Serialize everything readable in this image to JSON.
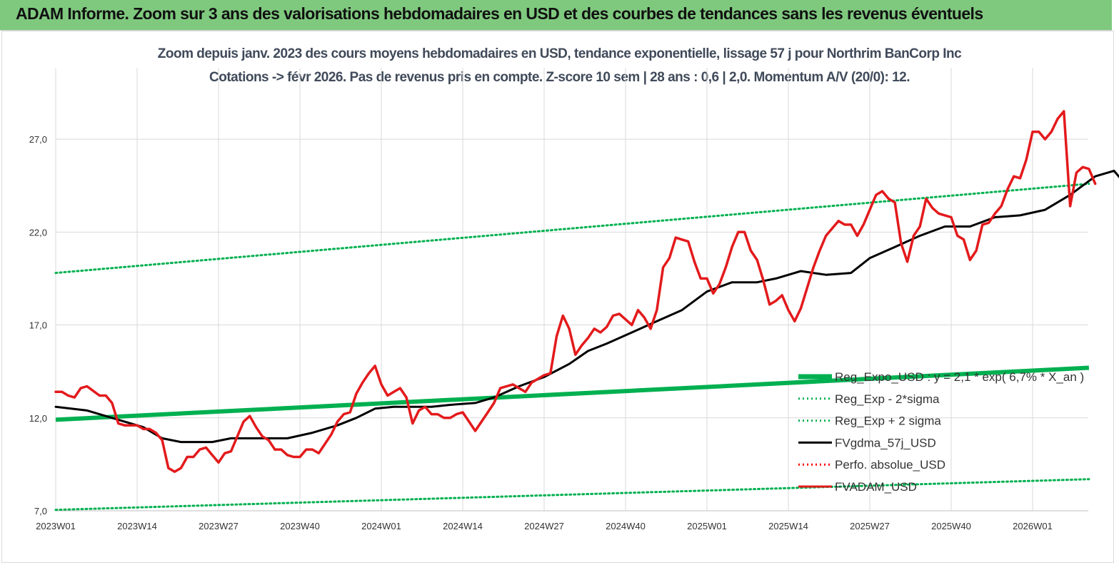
{
  "banner": {
    "title": "ADAM Informe. Zoom sur 3 ans des valorisations hebdomadaires en USD et des courbes de tendances sans les revenus éventuels"
  },
  "chart_data": {
    "type": "line",
    "title": "Zoom depuis janv. 2023 des cours moyens hebdomadaires en USD, tendance exponentielle, lissage 57 j pour Northrim BanCorp Inc",
    "subtitle": "Cotations -> févr 2026.  Pas de revenus pris en compte. Z-score 10 sem  | 28 ans : 0,6 | 2,0. Momentum A/V (20/0): 12.",
    "xlabel": "",
    "ylabel": "",
    "x_ticks": [
      "2023W01",
      "2023W14",
      "2023W27",
      "2023W40",
      "2024W01",
      "2024W14",
      "2024W27",
      "2024W40",
      "2025W01",
      "2025W14",
      "2025W27",
      "2025W40",
      "2026W01"
    ],
    "y_ticks": [
      "7,0",
      "12,0",
      "17,0",
      "22,0",
      "27,0"
    ],
    "ylim": [
      7,
      29.5
    ],
    "x_range_weeks": [
      0,
      165
    ],
    "grid": true,
    "legend_position": "bottom-right",
    "series": [
      {
        "name": "Reg_Expo_USD : y = 2,1 * exp( 6,7% *  X_an )",
        "color": "#00b050",
        "style": "thick",
        "points": [
          [
            0,
            11.9
          ],
          [
            165,
            14.7
          ]
        ]
      },
      {
        "name": "Reg_Exp - 2*sigma",
        "color": "#00b050",
        "style": "dotted",
        "points": [
          [
            0,
            7.05
          ],
          [
            165,
            8.7
          ]
        ]
      },
      {
        "name": "Reg_Exp + 2 sigma",
        "color": "#00b050",
        "style": "dotted",
        "points": [
          [
            0,
            19.8
          ],
          [
            165,
            24.6
          ]
        ]
      },
      {
        "name": "FVgdma_57j_USD",
        "color": "#000000",
        "style": "solid",
        "points": [
          [
            0,
            12.6
          ],
          [
            5,
            12.4
          ],
          [
            10,
            11.9
          ],
          [
            14,
            11.5
          ],
          [
            17,
            10.9
          ],
          [
            20,
            10.7
          ],
          [
            25,
            10.7
          ],
          [
            28,
            10.9
          ],
          [
            33,
            10.9
          ],
          [
            37,
            10.9
          ],
          [
            41,
            11.2
          ],
          [
            45,
            11.6
          ],
          [
            48,
            12.0
          ],
          [
            51,
            12.5
          ],
          [
            54,
            12.6
          ],
          [
            57,
            12.6
          ],
          [
            60,
            12.6
          ],
          [
            63,
            12.7
          ],
          [
            67,
            12.8
          ],
          [
            70,
            13.1
          ],
          [
            74,
            13.7
          ],
          [
            78,
            14.2
          ],
          [
            82,
            14.9
          ],
          [
            85,
            15.6
          ],
          [
            88,
            16.0
          ],
          [
            92,
            16.6
          ],
          [
            96,
            17.2
          ],
          [
            100,
            17.8
          ],
          [
            104,
            18.8
          ],
          [
            108,
            19.3
          ],
          [
            112,
            19.3
          ],
          [
            115,
            19.5
          ],
          [
            119,
            19.9
          ],
          [
            123,
            19.7
          ],
          [
            127,
            19.8
          ],
          [
            130,
            20.6
          ],
          [
            134,
            21.2
          ],
          [
            138,
            21.8
          ],
          [
            142,
            22.3
          ],
          [
            146,
            22.3
          ],
          [
            150,
            22.8
          ],
          [
            154,
            22.9
          ],
          [
            158,
            23.2
          ],
          [
            162,
            24.0
          ],
          [
            166,
            25.0
          ],
          [
            169,
            25.3
          ],
          [
            170,
            24.9
          ],
          [
            174,
            24.8
          ]
        ]
      },
      {
        "name": "Perfo. absolue_USD",
        "color": "#ff0000",
        "style": "dotted",
        "points": []
      },
      {
        "name": "FVADAM_USD",
        "color": "#e31a1c",
        "style": "solid",
        "points": [
          [
            0,
            13.4
          ],
          [
            1,
            13.4
          ],
          [
            2,
            13.2
          ],
          [
            3,
            13.1
          ],
          [
            4,
            13.6
          ],
          [
            5,
            13.7
          ],
          [
            7,
            13.2
          ],
          [
            8,
            13.2
          ],
          [
            9,
            12.8
          ],
          [
            10,
            11.7
          ],
          [
            11,
            11.6
          ],
          [
            12,
            11.6
          ],
          [
            13,
            11.6
          ],
          [
            14,
            11.4
          ],
          [
            15,
            11.4
          ],
          [
            16,
            11.2
          ],
          [
            17,
            10.8
          ],
          [
            18,
            9.3
          ],
          [
            19,
            9.1
          ],
          [
            20,
            9.3
          ],
          [
            21,
            9.9
          ],
          [
            22,
            9.9
          ],
          [
            23,
            10.3
          ],
          [
            24,
            10.4
          ],
          [
            25,
            10.0
          ],
          [
            26,
            9.6
          ],
          [
            27,
            10.1
          ],
          [
            28,
            10.2
          ],
          [
            29,
            11.0
          ],
          [
            30,
            11.8
          ],
          [
            31,
            12.1
          ],
          [
            32,
            11.5
          ],
          [
            33,
            11.0
          ],
          [
            34,
            10.8
          ],
          [
            35,
            10.3
          ],
          [
            36,
            10.3
          ],
          [
            37,
            10.0
          ],
          [
            38,
            9.9
          ],
          [
            39,
            9.9
          ],
          [
            40,
            10.3
          ],
          [
            41,
            10.3
          ],
          [
            42,
            10.1
          ],
          [
            43,
            10.6
          ],
          [
            44,
            11.1
          ],
          [
            45,
            11.8
          ],
          [
            46,
            12.2
          ],
          [
            47,
            12.3
          ],
          [
            48,
            13.3
          ],
          [
            49,
            13.9
          ],
          [
            50,
            14.4
          ],
          [
            51,
            14.8
          ],
          [
            52,
            13.8
          ],
          [
            53,
            13.2
          ],
          [
            54,
            13.4
          ],
          [
            55,
            13.6
          ],
          [
            56,
            13.1
          ],
          [
            57,
            11.7
          ],
          [
            58,
            12.4
          ],
          [
            59,
            12.6
          ],
          [
            60,
            12.2
          ],
          [
            61,
            12.2
          ],
          [
            62,
            12.0
          ],
          [
            63,
            12.0
          ],
          [
            64,
            12.2
          ],
          [
            65,
            12.3
          ],
          [
            66,
            11.8
          ],
          [
            67,
            11.3
          ],
          [
            68,
            11.8
          ],
          [
            69,
            12.3
          ],
          [
            70,
            12.8
          ],
          [
            71,
            13.6
          ],
          [
            72,
            13.7
          ],
          [
            73,
            13.8
          ],
          [
            74,
            13.6
          ],
          [
            75,
            13.4
          ],
          [
            76,
            13.9
          ],
          [
            77,
            14.1
          ],
          [
            78,
            14.3
          ],
          [
            79,
            14.4
          ],
          [
            80,
            16.4
          ],
          [
            81,
            17.5
          ],
          [
            82,
            16.8
          ],
          [
            83,
            15.4
          ],
          [
            84,
            15.9
          ],
          [
            85,
            16.3
          ],
          [
            86,
            16.8
          ],
          [
            87,
            16.6
          ],
          [
            88,
            16.9
          ],
          [
            89,
            17.5
          ],
          [
            90,
            17.6
          ],
          [
            91,
            17.3
          ],
          [
            92,
            17.0
          ],
          [
            93,
            17.8
          ],
          [
            94,
            17.4
          ],
          [
            95,
            16.8
          ],
          [
            96,
            17.8
          ],
          [
            97,
            20.1
          ],
          [
            98,
            20.6
          ],
          [
            99,
            21.7
          ],
          [
            100,
            21.6
          ],
          [
            101,
            21.5
          ],
          [
            102,
            20.4
          ],
          [
            103,
            19.5
          ],
          [
            104,
            19.5
          ],
          [
            105,
            18.7
          ],
          [
            106,
            19.2
          ],
          [
            107,
            20.1
          ],
          [
            108,
            21.2
          ],
          [
            109,
            22.0
          ],
          [
            110,
            22.0
          ],
          [
            111,
            21.0
          ],
          [
            112,
            20.5
          ],
          [
            113,
            19.4
          ],
          [
            114,
            18.1
          ],
          [
            115,
            18.3
          ],
          [
            116,
            18.6
          ],
          [
            117,
            17.8
          ],
          [
            118,
            17.2
          ],
          [
            119,
            17.9
          ],
          [
            120,
            19.0
          ],
          [
            121,
            20.1
          ],
          [
            122,
            21.0
          ],
          [
            123,
            21.8
          ],
          [
            124,
            22.2
          ],
          [
            125,
            22.6
          ],
          [
            126,
            22.4
          ],
          [
            127,
            22.4
          ],
          [
            128,
            21.8
          ],
          [
            129,
            22.4
          ],
          [
            130,
            23.2
          ],
          [
            131,
            24.0
          ],
          [
            132,
            24.2
          ],
          [
            133,
            23.8
          ],
          [
            134,
            23.6
          ],
          [
            135,
            21.4
          ],
          [
            136,
            20.4
          ],
          [
            137,
            21.8
          ],
          [
            138,
            22.3
          ],
          [
            139,
            23.8
          ],
          [
            140,
            23.3
          ],
          [
            141,
            23.0
          ],
          [
            142,
            22.9
          ],
          [
            143,
            22.8
          ],
          [
            144,
            21.8
          ],
          [
            145,
            21.6
          ],
          [
            146,
            20.5
          ],
          [
            147,
            21.0
          ],
          [
            148,
            22.4
          ],
          [
            149,
            22.5
          ],
          [
            150,
            23.0
          ],
          [
            151,
            23.4
          ],
          [
            152,
            24.3
          ],
          [
            153,
            25.0
          ],
          [
            154,
            24.9
          ],
          [
            155,
            25.9
          ],
          [
            156,
            27.4
          ],
          [
            157,
            27.4
          ],
          [
            158,
            27.0
          ],
          [
            159,
            27.4
          ],
          [
            160,
            28.1
          ],
          [
            161,
            28.5
          ],
          [
            162,
            23.4
          ],
          [
            163,
            25.2
          ],
          [
            164,
            25.5
          ],
          [
            165,
            25.4
          ],
          [
            166,
            24.6
          ]
        ]
      }
    ]
  }
}
